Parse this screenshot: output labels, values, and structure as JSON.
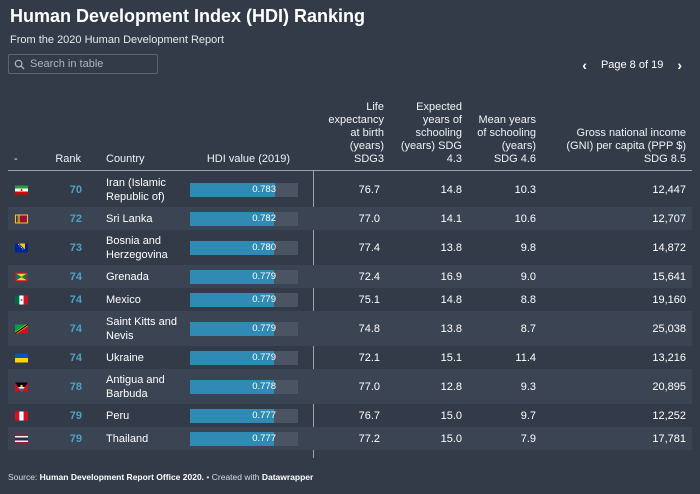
{
  "title": "Human Development Index (HDI) Ranking",
  "subtitle": "From the 2020 Human Development Report",
  "search": {
    "placeholder": "Search in table"
  },
  "pager": {
    "label": "Page 8 of 19",
    "prev_icon": "chevron-left",
    "next_icon": "chevron-right"
  },
  "columns": {
    "flag": "-",
    "rank": "Rank",
    "country": "Country",
    "hdi": "HDI value (2019)",
    "life": "Life expectancy at birth (years) SDG3",
    "expected": "Expected years of schooling (years) SDG 4.3",
    "mean": "Mean years of schooling (years) SDG 4.6",
    "gni": "Gross national income (GNI) per capita (PPP $) SDG 8.5"
  },
  "colors": {
    "background": "#333b48",
    "rank_blue": "#4aa3c8",
    "bar_fill": "#2f8bb3",
    "bar_track": "#4a5462"
  },
  "rows": [
    {
      "flag": "iran-flag",
      "rank": "70",
      "country": "Iran (Islamic Republic of)",
      "hdi": "0.783",
      "life": "76.7",
      "expected": "14.8",
      "mean": "10.3",
      "gni": "12,447"
    },
    {
      "flag": "sri-lanka-flag",
      "rank": "72",
      "country": "Sri Lanka",
      "hdi": "0.782",
      "life": "77.0",
      "expected": "14.1",
      "mean": "10.6",
      "gni": "12,707"
    },
    {
      "flag": "bosnia-flag",
      "rank": "73",
      "country": "Bosnia and Herzegovina",
      "hdi": "0.780",
      "life": "77.4",
      "expected": "13.8",
      "mean": "9.8",
      "gni": "14,872"
    },
    {
      "flag": "grenada-flag",
      "rank": "74",
      "country": "Grenada",
      "hdi": "0.779",
      "life": "72.4",
      "expected": "16.9",
      "mean": "9.0",
      "gni": "15,641"
    },
    {
      "flag": "mexico-flag",
      "rank": "74",
      "country": "Mexico",
      "hdi": "0.779",
      "life": "75.1",
      "expected": "14.8",
      "mean": "8.8",
      "gni": "19,160"
    },
    {
      "flag": "saint-kitts-flag",
      "rank": "74",
      "country": "Saint Kitts and Nevis",
      "hdi": "0.779",
      "life": "74.8",
      "expected": "13.8",
      "mean": "8.7",
      "gni": "25,038"
    },
    {
      "flag": "ukraine-flag",
      "rank": "74",
      "country": "Ukraine",
      "hdi": "0.779",
      "life": "72.1",
      "expected": "15.1",
      "mean": "11.4",
      "gni": "13,216"
    },
    {
      "flag": "antigua-flag",
      "rank": "78",
      "country": "Antigua and Barbuda",
      "hdi": "0.778",
      "life": "77.0",
      "expected": "12.8",
      "mean": "9.3",
      "gni": "20,895"
    },
    {
      "flag": "peru-flag",
      "rank": "79",
      "country": "Peru",
      "hdi": "0.777",
      "life": "76.7",
      "expected": "15.0",
      "mean": "9.7",
      "gni": "12,252"
    },
    {
      "flag": "thailand-flag",
      "rank": "79",
      "country": "Thailand",
      "hdi": "0.777",
      "life": "77.2",
      "expected": "15.0",
      "mean": "7.9",
      "gni": "17,781"
    }
  ],
  "footer": {
    "source_prefix": "Source: ",
    "source": "Human Development Report Office 2020.",
    "created_prefix": " • Created with ",
    "tool": "Datawrapper"
  }
}
